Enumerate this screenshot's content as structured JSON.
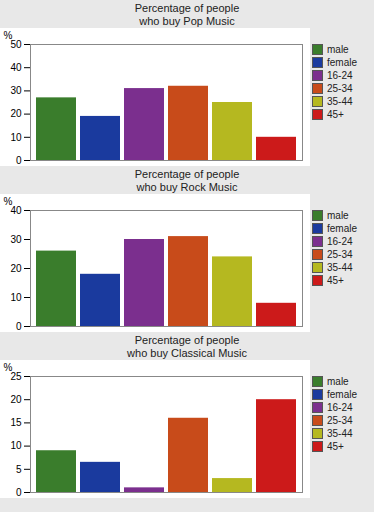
{
  "chart_data": [
    {
      "type": "bar",
      "title": "Percentage of people\nwho buy Pop Music",
      "categories": [
        "male",
        "female",
        "16-24",
        "25-34",
        "35-44",
        "45+"
      ],
      "values": [
        27,
        19,
        31,
        32,
        25,
        10
      ],
      "colors": [
        "#3a7d2c",
        "#1a3a9e",
        "#7b2f8e",
        "#c84b1a",
        "#b5b820",
        "#cc1a1a"
      ],
      "ylabel": "%",
      "ylim": [
        0,
        50
      ],
      "yticks": [
        0,
        10,
        20,
        30,
        40,
        50
      ],
      "grid": false,
      "legend": "upper right",
      "tick_labels": "y"
    },
    {
      "type": "bar",
      "title": "Percentage of people\nwho buy Rock Music",
      "categories": [
        "male",
        "female",
        "16-24",
        "25-34",
        "35-44",
        "45+"
      ],
      "values": [
        26,
        18,
        30,
        31,
        24,
        8
      ],
      "colors": [
        "#3a7d2c",
        "#1a3a9e",
        "#7b2f8e",
        "#c84b1a",
        "#b5b820",
        "#cc1a1a"
      ],
      "ylabel": "%",
      "ylim": [
        0,
        40
      ],
      "yticks": [
        0,
        10,
        20,
        30,
        40
      ],
      "grid": false,
      "legend": "upper right",
      "tick_labels": "y"
    },
    {
      "type": "bar",
      "title": "Percentage of people\nwho buy Classical Music",
      "categories": [
        "male",
        "female",
        "16-24",
        "25-34",
        "35-44",
        "45+"
      ],
      "values": [
        9,
        6.5,
        1,
        16,
        3,
        20
      ],
      "colors": [
        "#3a7d2c",
        "#1a3a9e",
        "#7b2f8e",
        "#c84b1a",
        "#b5b820",
        "#cc1a1a"
      ],
      "ylabel": "%",
      "ylim": [
        0,
        25
      ],
      "yticks": [
        0,
        5,
        10,
        15,
        20,
        25
      ],
      "grid": false,
      "legend": "upper right",
      "tick_labels": "y"
    }
  ]
}
